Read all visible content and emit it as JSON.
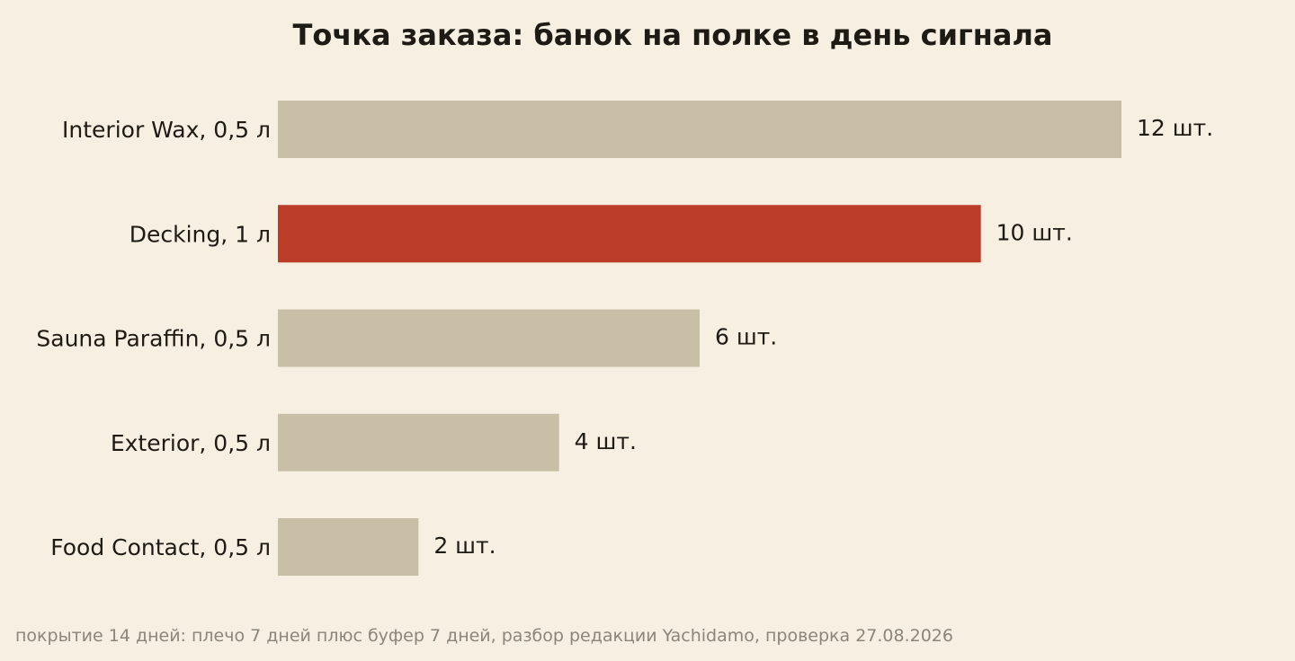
{
  "chart_data": {
    "type": "bar",
    "orientation": "horizontal",
    "title": "Точка заказа: банок на полке в день сигнала",
    "categories": [
      "Interior Wax, 0,5 л",
      "Decking, 1 л",
      "Sauna Paraffin, 0,5 л",
      "Exterior, 0,5 л",
      "Food Contact, 0,5 л"
    ],
    "values": [
      12,
      10,
      6,
      4,
      2
    ],
    "value_labels": [
      "12 шт.",
      "10 шт.",
      "6 шт.",
      "4 шт.",
      "2 шт."
    ],
    "highlight_index": 1,
    "xlim": [
      0,
      12
    ],
    "grid": false,
    "legend": "none",
    "colors": {
      "background": "#f6efe2",
      "bar": "#c9bfa7",
      "highlight": "#bc3d27",
      "text": "#1e1a14",
      "footnote": "#8b857a"
    }
  },
  "footnote": "покрытие 14 дней: плечо 7 дней плюс буфер 7 дней, разбор редакции Yachidamo, проверка 27.08.2026"
}
